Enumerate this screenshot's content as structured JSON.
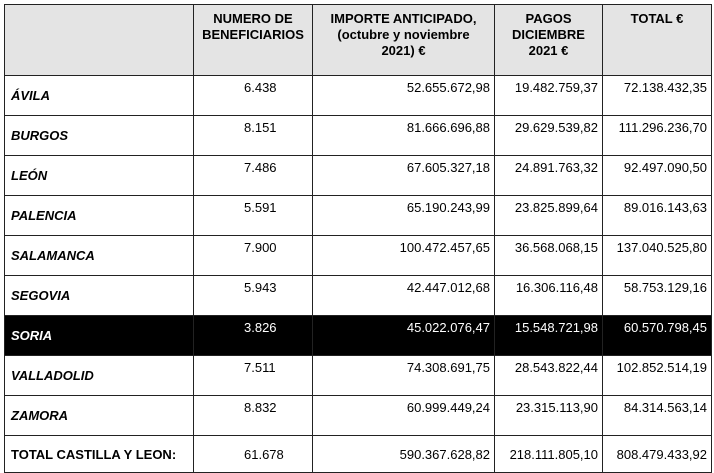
{
  "table": {
    "header": [
      "",
      "NUMERO DE BENEFICIARIOS",
      "IMPORTE ANTICIPADO, (octubre y noviembre 2021) €",
      "PAGOS DICIEMBRE 2021 €",
      "TOTAL €"
    ],
    "rows": [
      [
        "ÁVILA",
        "6.438",
        "52.655.672,98",
        "19.482.759,37",
        "72.138.432,35"
      ],
      [
        "BURGOS",
        "8.151",
        "81.666.696,88",
        "29.629.539,82",
        "111.296.236,70"
      ],
      [
        "LEÓN",
        "7.486",
        "67.605.327,18",
        "24.891.763,32",
        "92.497.090,50"
      ],
      [
        "PALENCIA",
        "5.591",
        "65.190.243,99",
        "23.825.899,64",
        "89.016.143,63"
      ],
      [
        "SALAMANCA",
        "7.900",
        "100.472.457,65",
        "36.568.068,15",
        "137.040.525,80"
      ],
      [
        "SEGOVIA",
        "5.943",
        "42.447.012,68",
        "16.306.116,48",
        "58.753.129,16"
      ],
      [
        "SORIA",
        "3.826",
        "45.022.076,47",
        "15.548.721,98",
        "60.570.798,45"
      ],
      [
        "VALLADOLID",
        "7.511",
        "74.308.691,75",
        "28.543.822,44",
        "102.852.514,19"
      ],
      [
        "ZAMORA",
        "8.832",
        "60.999.449,24",
        "23.315.113,90",
        "84.314.563,14"
      ]
    ],
    "total": [
      "TOTAL CASTILLA Y LEON:",
      "61.678",
      "590.367.628,82",
      "218.111.805,10",
      "808.479.433,92"
    ]
  }
}
